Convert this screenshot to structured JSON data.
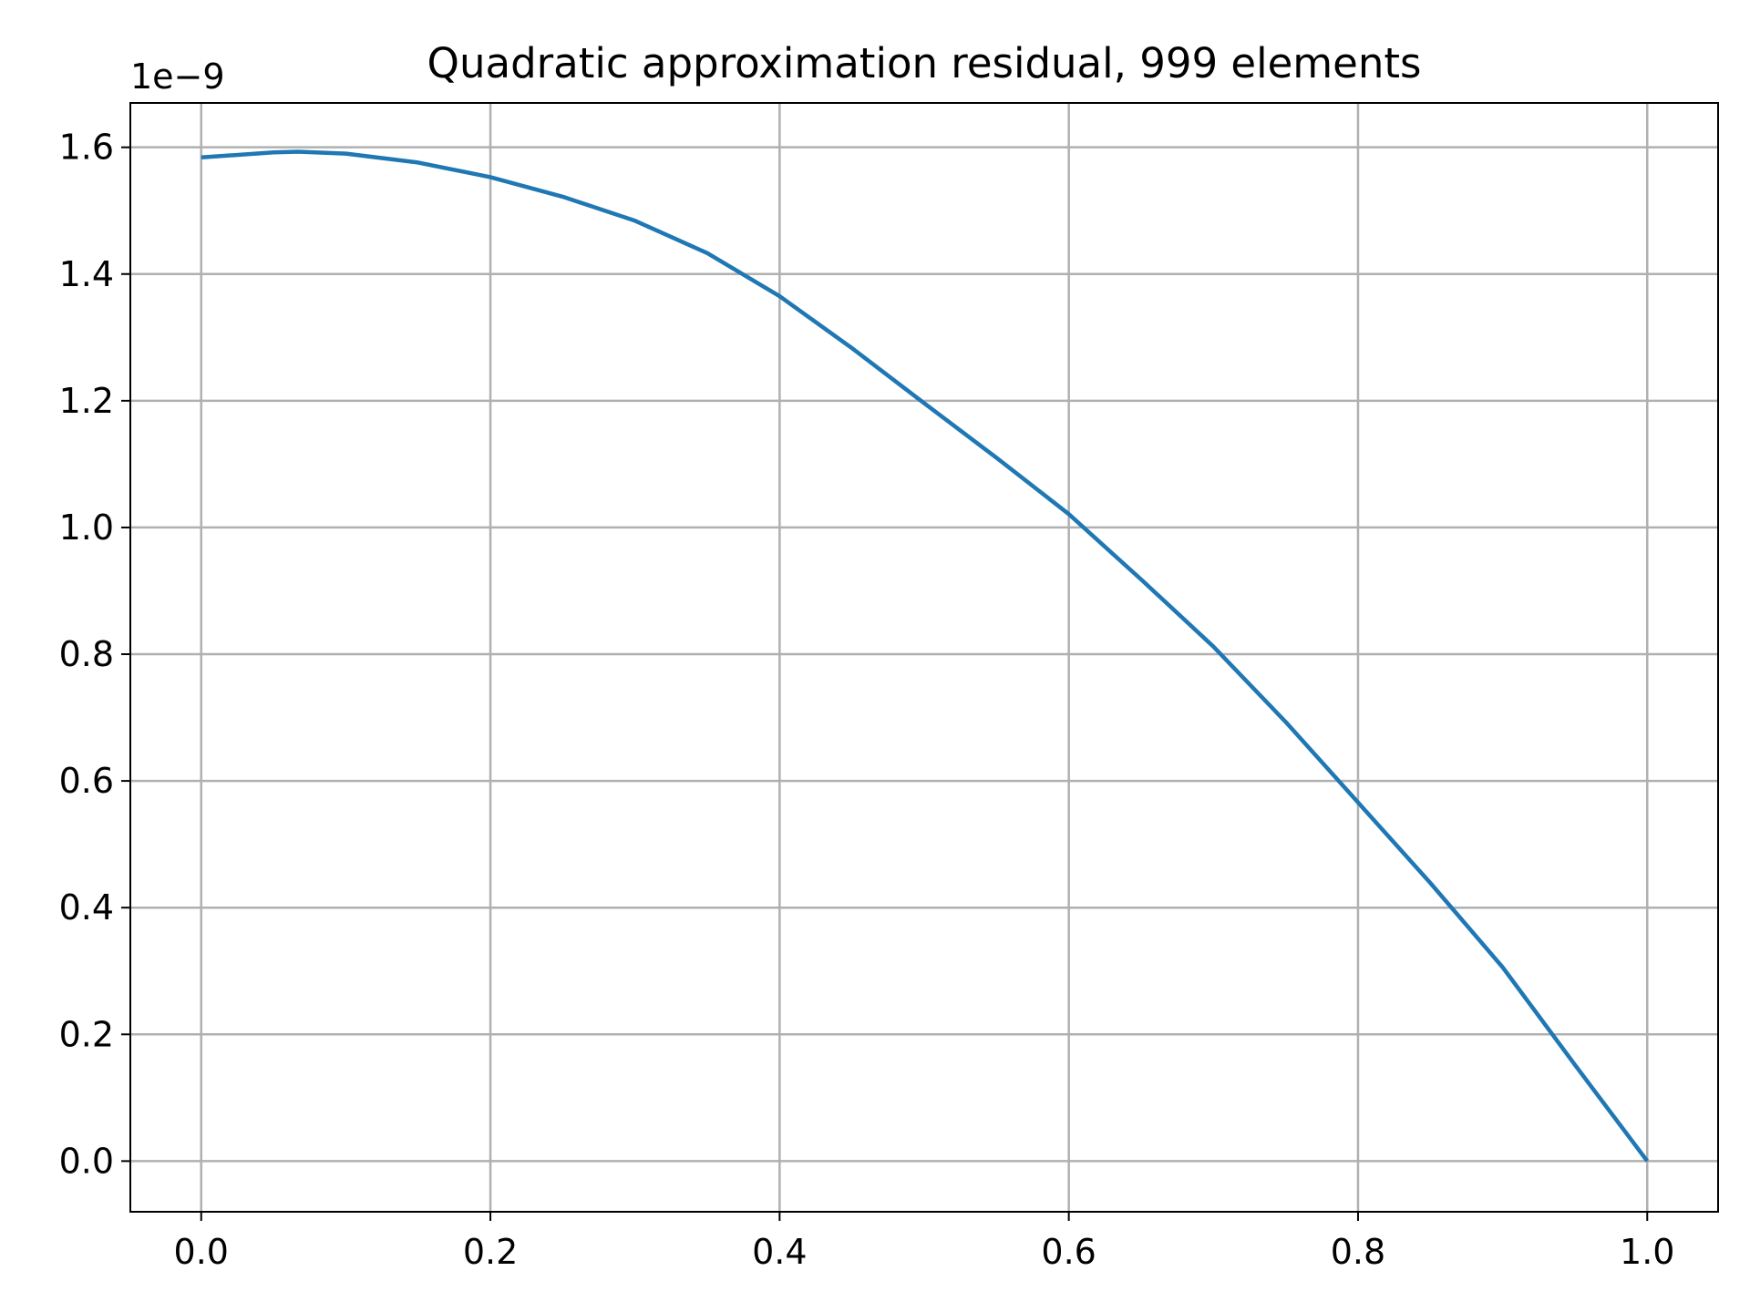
{
  "chart_data": {
    "type": "line",
    "title": "Quadratic approximation residual, 999 elements",
    "xlabel": "",
    "ylabel": "",
    "y_offset_label": "1e−9",
    "xlim": [
      -0.049,
      1.049
    ],
    "ylim": [
      -0.08,
      1.67
    ],
    "y_scale_factor": 1e-09,
    "grid": true,
    "x_ticks": [
      0.0,
      0.2,
      0.4,
      0.6,
      0.8,
      1.0
    ],
    "x_tick_labels": [
      "0.0",
      "0.2",
      "0.4",
      "0.6",
      "0.8",
      "1.0"
    ],
    "y_ticks": [
      0.0,
      0.2,
      0.4,
      0.6,
      0.8,
      1.0,
      1.2,
      1.4,
      1.6
    ],
    "y_tick_labels": [
      "0.0",
      "0.2",
      "0.4",
      "0.6",
      "0.8",
      "1.0",
      "1.2",
      "1.4",
      "1.6"
    ],
    "series": [
      {
        "color": "#1f77b4",
        "x": [
          0.0,
          0.05,
          0.067,
          0.1,
          0.15,
          0.2,
          0.25,
          0.3,
          0.35,
          0.4,
          0.45,
          0.5,
          0.55,
          0.6,
          0.65,
          0.7,
          0.75,
          0.8,
          0.85,
          0.9,
          0.95,
          1.0
        ],
        "y": [
          1.584,
          1.592,
          1.593,
          1.59,
          1.576,
          1.553,
          1.522,
          1.484,
          1.433,
          1.365,
          1.283,
          1.196,
          1.11,
          1.021,
          0.918,
          0.812,
          0.693,
          0.566,
          0.439,
          0.306,
          0.152,
          0.0
        ]
      }
    ]
  }
}
